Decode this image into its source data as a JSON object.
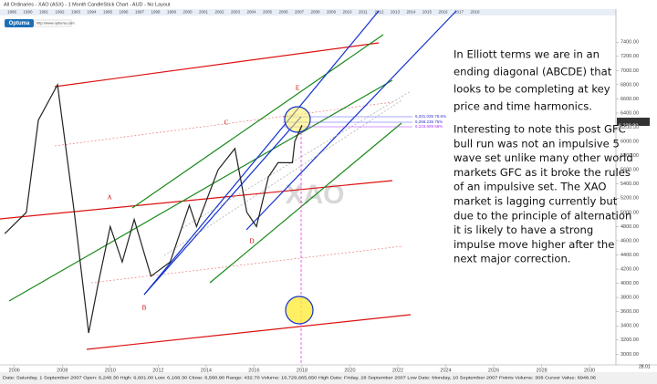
{
  "header": {
    "title": "All Ordinaries - XAO (ASX) - 1 Month CandleStick Chart - AUD - No Layout",
    "logo": "Optuma",
    "url": "http://www.optuma.com",
    "timeline": [
      "1986",
      "1990",
      "1991",
      "1992",
      "1993",
      "1994",
      "1995",
      "1996",
      "1997",
      "1998",
      "1999",
      "2000",
      "2001",
      "2002",
      "2003",
      "2004",
      "2005",
      "2006",
      "2007",
      "2008",
      "2009",
      "2010",
      "2011",
      "2012",
      "2013",
      "2014",
      "2015",
      "2016",
      "2017",
      "2018"
    ]
  },
  "chart_data": {
    "type": "line",
    "watermark": "XAO",
    "x": [
      2005.6,
      2006.5,
      2007.0,
      2007.8,
      2008.5,
      2009.1,
      2009.5,
      2010.0,
      2010.5,
      2011.0,
      2011.7,
      2012.5,
      2013.3,
      2013.6,
      2014.5,
      2015.2,
      2015.7,
      2016.1,
      2016.6,
      2017.0,
      2017.6,
      2017.7,
      2018.0
    ],
    "series": [
      {
        "name": "XAO",
        "color": "#222222",
        "values": [
          4700,
          5000,
          6300,
          6800,
          5000,
          3300,
          4000,
          4800,
          4300,
          4900,
          4100,
          4300,
          5100,
          4800,
          5600,
          5900,
          5000,
          4800,
          5500,
          5700,
          5700,
          6000,
          6229.8
        ]
      }
    ],
    "last_price": {
      "value": 6229.8,
      "label": "6,229.80"
    },
    "xlim": [
      2005.4,
      2031.1
    ],
    "ylim": [
      2850,
      7840
    ],
    "xticks": [
      2006,
      2008,
      2010,
      2012,
      2014,
      2016,
      2018,
      2020,
      2022,
      2024,
      2026,
      2028,
      2030
    ],
    "yticks": [
      {
        "value": 3000,
        "label": "3000.00"
      },
      {
        "value": 3200,
        "label": "3200.00"
      },
      {
        "value": 3400,
        "label": "3400.00"
      },
      {
        "value": 3600,
        "label": "3600.00"
      },
      {
        "value": 3800,
        "label": "3800.00"
      },
      {
        "value": 4000,
        "label": "4000.00"
      },
      {
        "value": 4200,
        "label": "4200.00"
      },
      {
        "value": 4400,
        "label": "4400.00"
      },
      {
        "value": 4600,
        "label": "4600.00"
      },
      {
        "value": 4800,
        "label": "4800.00"
      },
      {
        "value": 5000,
        "label": "5000.00"
      },
      {
        "value": 5200,
        "label": "5200.00"
      },
      {
        "value": 5400,
        "label": "5400.00"
      },
      {
        "value": 5600,
        "label": "5600.00"
      },
      {
        "value": 5800,
        "label": "5800.00"
      },
      {
        "value": 6000,
        "label": "6000.00"
      },
      {
        "value": 6200,
        "label": "6200.00"
      },
      {
        "value": 6400,
        "label": "6400.00"
      },
      {
        "value": 6600,
        "label": "6600.00"
      },
      {
        "value": 6800,
        "label": "6800.00"
      },
      {
        "value": 7000,
        "label": "7000.00"
      },
      {
        "value": 7200,
        "label": "7200.00"
      },
      {
        "value": 7400,
        "label": "7400.00"
      }
    ],
    "waves": [
      "A",
      "B",
      "C",
      "D",
      "E"
    ],
    "fib_levels": [
      "6,331.035   78.6%",
      "6,268.235   75%",
      "6,233.699   68%"
    ],
    "annotation": {
      "paragraphs": [
        [
          "In Elliott terms we are in an",
          "ending diagonal (ABCDE) that",
          "looks to be completing at key",
          "price and time harmonics."
        ],
        [
          "Interesting to note this post GFC",
          "bull run was not an impulsive 5",
          "wave set unlike many other world",
          "markets GFC as it broke the rules",
          "of an impulsive set.  The XAO",
          "market is lagging currently but",
          "due to the principle of alternation",
          "it is likely to have a strong",
          "impulse move higher after the",
          "next major correction."
        ]
      ]
    }
  },
  "status_bar": {
    "text": "Date: Saturday, 1 September 2007 Open: 6,248.30 High: 6,601.00 Low: 6,168.30 Close: 6,580.90 Range: 432.70 Volume: 16,729,665,650 High Date: Friday, 28 September 2007 Low Date: Monday, 10 September 2007 Points Volume: 308 Cursor Value: 6948.06",
    "right": "28.01"
  }
}
